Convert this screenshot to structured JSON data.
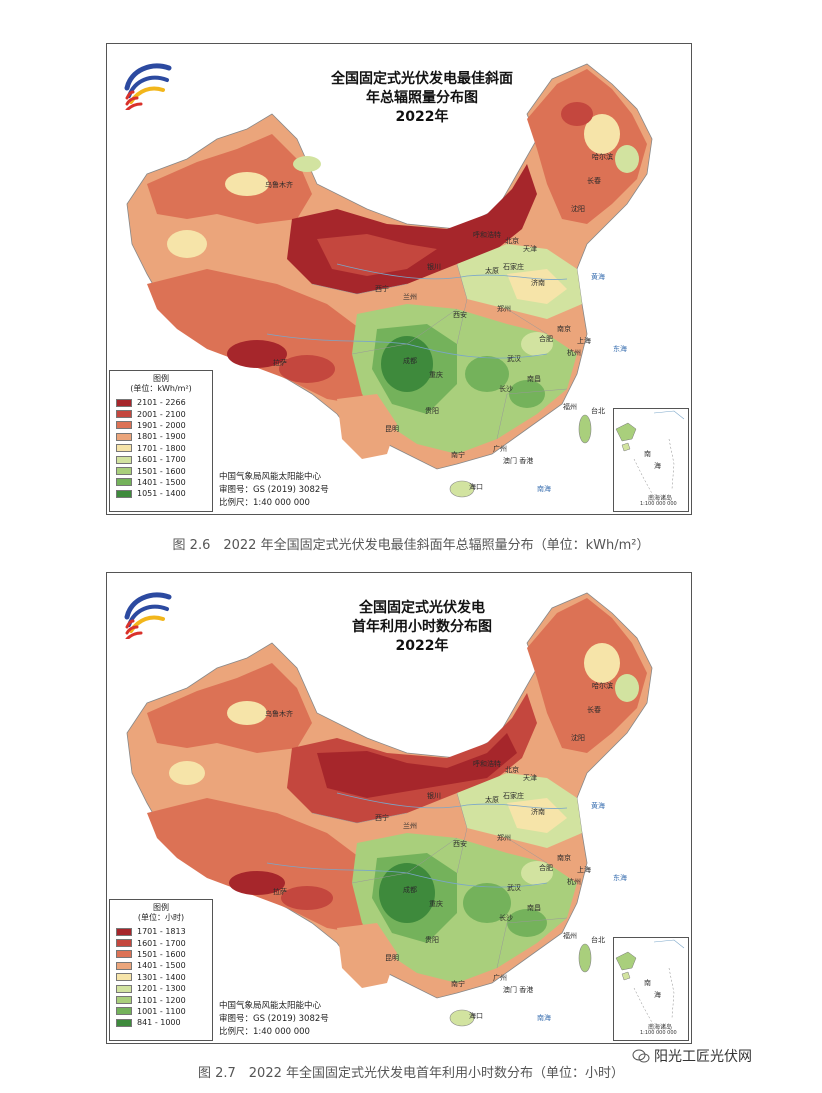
{
  "figures": [
    {
      "title_line1": "全国固定式光伏发电最佳斜面",
      "title_line2": "年总辐照量分布图",
      "year": "2022年",
      "legend_title": "图例",
      "legend_unit": "(单位：kWh/m²)",
      "legend_items": [
        {
          "label": "2101 - 2266",
          "color": "#a6262b"
        },
        {
          "label": "2001 - 2100",
          "color": "#c4473e"
        },
        {
          "label": "1901 - 2000",
          "color": "#dc7255"
        },
        {
          "label": "1801 - 1900",
          "color": "#eba57b"
        },
        {
          "label": "1701 - 1800",
          "color": "#f6e4a9"
        },
        {
          "label": "1601 - 1700",
          "color": "#d2e3a0"
        },
        {
          "label": "1501 - 1600",
          "color": "#a9cf7c"
        },
        {
          "label": "1401 - 1500",
          "color": "#74b25b"
        },
        {
          "label": "1051 - 1400",
          "color": "#3e8a3c"
        }
      ],
      "credit_org": "中国气象局风能太阳能中心",
      "credit_map_no": "审图号：GS (2019) 3082号",
      "credit_scale": "比例尺：1:40 000 000",
      "inset_label1": "南",
      "inset_label2": "海",
      "inset_caption": "南海诸岛",
      "inset_scale": "1:100 000 000",
      "caption": "图 2.6　2022 年全国固定式光伏发电最佳斜面年总辐照量分布（单位：kWh/m²）"
    },
    {
      "title_line1": "全国固定式光伏发电",
      "title_line2": "首年利用小时数分布图",
      "year": "2022年",
      "legend_title": "图例",
      "legend_unit": "(单位：小时)",
      "legend_items": [
        {
          "label": "1701 - 1813",
          "color": "#a6262b"
        },
        {
          "label": "1601 - 1700",
          "color": "#c4473e"
        },
        {
          "label": "1501 - 1600",
          "color": "#dc7255"
        },
        {
          "label": "1401 - 1500",
          "color": "#eba57b"
        },
        {
          "label": "1301 - 1400",
          "color": "#f6e4a9"
        },
        {
          "label": "1201 - 1300",
          "color": "#d2e3a0"
        },
        {
          "label": "1101 - 1200",
          "color": "#a9cf7c"
        },
        {
          "label": "1001 - 1100",
          "color": "#74b25b"
        },
        {
          "label": "841 - 1000",
          "color": "#3e8a3c"
        }
      ],
      "credit_org": "中国气象局风能太阳能中心",
      "credit_map_no": "审图号：GS (2019) 3082号",
      "credit_scale": "比例尺：1:40 000 000",
      "inset_label1": "南",
      "inset_label2": "海",
      "inset_caption": "南海诸岛",
      "inset_scale": "1:100 000 000",
      "caption": "图 2.7　2022 年全国固定式光伏发电首年利用小时数分布（单位：小时）"
    }
  ],
  "cities": {
    "harbin": "哈尔滨",
    "changchun": "长春",
    "shenyang": "沈阳",
    "beijing": "北京",
    "tianjin": "天津",
    "shijiazhuang": "石家庄",
    "taiyuan": "太原",
    "jinan": "济南",
    "hohhot": "呼和浩特",
    "yinchuan": "银川",
    "lanzhou": "兰州",
    "xining": "西宁",
    "xian": "西安",
    "zhengzhou": "郑州",
    "hefei": "合肥",
    "nanjing": "南京",
    "shanghai": "上海",
    "hangzhou": "杭州",
    "wuhan": "武汉",
    "changsha": "长沙",
    "nanchang": "南昌",
    "fuzhou": "福州",
    "taibei": "台北",
    "chengdu": "成都",
    "chongqing": "重庆",
    "guiyang": "贵阳",
    "kunming": "昆明",
    "nanning": "南宁",
    "guangzhou": "广州",
    "macau_hk": "澳门 香港",
    "haikou": "海口",
    "lhasa": "拉萨",
    "urumqi": "乌鲁木齐",
    "sea_huanghai": "黄海",
    "sea_donghai": "东海",
    "sea_nanhai": "南海"
  },
  "watermark": "阳光工匠光伏网",
  "brand_colors": {
    "logo_blue": "#2c4aa0",
    "logo_red": "#d9312b",
    "logo_yellow": "#f2b61b"
  }
}
